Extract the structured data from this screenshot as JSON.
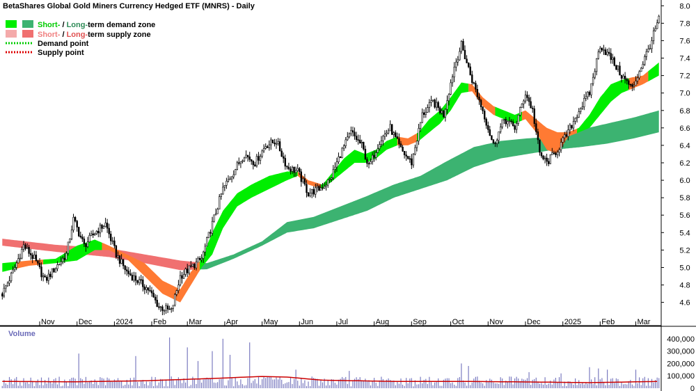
{
  "chart_data": {
    "type": "candlestick",
    "title": "BetaShares Global Gold Miners Currency Hedged ETF (MNRS) - Daily",
    "legend": {
      "placement": "top-left",
      "demand_zone": {
        "short": "Short-",
        "sep": " / ",
        "long": "Long-",
        "rest": "term demand zone",
        "short_color": "#00ee00",
        "long_color": "#3cb371"
      },
      "supply_zone": {
        "short": "Short-",
        "sep": " / ",
        "long": "Long-",
        "rest": "term supply zone",
        "short_color": "#f4aaaa",
        "long_color": "#f07070"
      },
      "demand_point": {
        "label": "Demand point",
        "color": "#00cc00"
      },
      "supply_point": {
        "label": "Supply point",
        "color": "#dd0000"
      }
    },
    "x_labels": [
      "Nov",
      "Dec",
      "2024",
      "Feb",
      "Mar",
      "Apr",
      "May",
      "Jun",
      "Jul",
      "Aug",
      "Sep",
      "Oct",
      "Nov",
      "Dec",
      "2025",
      "Feb",
      "Mar"
    ],
    "x_label_index": [
      21,
      42,
      63,
      84,
      104,
      125,
      146,
      167,
      188,
      209,
      230,
      252,
      273,
      294,
      315,
      336,
      356
    ],
    "total_bars": 370,
    "price_axis": {
      "ylim": [
        4.35,
        8.05
      ],
      "ticks": [
        "4.6",
        "4.8",
        "5.0",
        "5.2",
        "5.4",
        "5.6",
        "5.8",
        "6.0",
        "6.2",
        "6.4",
        "6.6",
        "6.8",
        "7.0",
        "7.2",
        "7.4",
        "7.6",
        "7.8",
        "8.0"
      ]
    },
    "price_path": [
      [
        0,
        4.7
      ],
      [
        6,
        4.95
      ],
      [
        12,
        5.25
      ],
      [
        18,
        5.1
      ],
      [
        24,
        4.85
      ],
      [
        30,
        5.0
      ],
      [
        36,
        5.15
      ],
      [
        40,
        5.55
      ],
      [
        46,
        5.25
      ],
      [
        52,
        5.4
      ],
      [
        58,
        5.5
      ],
      [
        64,
        5.15
      ],
      [
        70,
        4.95
      ],
      [
        76,
        4.85
      ],
      [
        82,
        4.75
      ],
      [
        88,
        4.55
      ],
      [
        95,
        4.5
      ],
      [
        100,
        4.9
      ],
      [
        106,
        5.0
      ],
      [
        112,
        5.1
      ],
      [
        118,
        5.5
      ],
      [
        124,
        5.9
      ],
      [
        130,
        6.1
      ],
      [
        136,
        6.3
      ],
      [
        142,
        6.2
      ],
      [
        148,
        6.4
      ],
      [
        154,
        6.45
      ],
      [
        160,
        6.15
      ],
      [
        166,
        6.1
      ],
      [
        172,
        5.85
      ],
      [
        178,
        5.9
      ],
      [
        184,
        6.0
      ],
      [
        190,
        6.3
      ],
      [
        196,
        6.55
      ],
      [
        202,
        6.4
      ],
      [
        206,
        6.15
      ],
      [
        212,
        6.45
      ],
      [
        218,
        6.6
      ],
      [
        224,
        6.35
      ],
      [
        230,
        6.2
      ],
      [
        236,
        6.75
      ],
      [
        242,
        6.9
      ],
      [
        248,
        6.75
      ],
      [
        254,
        7.3
      ],
      [
        258,
        7.55
      ],
      [
        264,
        7.15
      ],
      [
        270,
        6.8
      ],
      [
        276,
        6.4
      ],
      [
        282,
        6.7
      ],
      [
        288,
        6.6
      ],
      [
        294,
        7.0
      ],
      [
        298,
        6.8
      ],
      [
        302,
        6.3
      ],
      [
        306,
        6.2
      ],
      [
        312,
        6.35
      ],
      [
        318,
        6.55
      ],
      [
        324,
        6.8
      ],
      [
        330,
        7.0
      ],
      [
        336,
        7.55
      ],
      [
        342,
        7.4
      ],
      [
        348,
        7.2
      ],
      [
        354,
        7.05
      ],
      [
        360,
        7.35
      ],
      [
        364,
        7.55
      ],
      [
        369,
        7.85
      ]
    ],
    "long_zone": [
      [
        0,
        5.33,
        5.25
      ],
      [
        30,
        5.26,
        5.18
      ],
      [
        60,
        5.22,
        5.12
      ],
      [
        80,
        5.15,
        5.05
      ],
      [
        100,
        5.08,
        4.97
      ],
      [
        115,
        5.05,
        4.98
      ],
      [
        130,
        5.15,
        5.1
      ],
      [
        146,
        5.3,
        5.25
      ],
      [
        160,
        5.52,
        5.4
      ],
      [
        175,
        5.58,
        5.45
      ],
      [
        190,
        5.7,
        5.55
      ],
      [
        205,
        5.82,
        5.65
      ],
      [
        220,
        5.95,
        5.8
      ],
      [
        235,
        6.05,
        5.9
      ],
      [
        250,
        6.22,
        6.0
      ],
      [
        265,
        6.38,
        6.15
      ],
      [
        280,
        6.45,
        6.25
      ],
      [
        295,
        6.48,
        6.3
      ],
      [
        310,
        6.5,
        6.35
      ],
      [
        325,
        6.58,
        6.38
      ],
      [
        340,
        6.65,
        6.42
      ],
      [
        355,
        6.72,
        6.48
      ],
      [
        369,
        6.8,
        6.55
      ]
    ],
    "long_supply_until": 110,
    "short_zone": [
      [
        0,
        5.05,
        4.95
      ],
      [
        15,
        5.08,
        5.02
      ],
      [
        30,
        5.1,
        5.05
      ],
      [
        42,
        5.25,
        5.08
      ],
      [
        52,
        5.32,
        5.2
      ],
      [
        60,
        5.25,
        5.2
      ],
      [
        70,
        5.15,
        5.1
      ],
      [
        80,
        5.05,
        4.9
      ],
      [
        90,
        4.85,
        4.7
      ],
      [
        100,
        4.75,
        4.6
      ],
      [
        106,
        4.95,
        4.8
      ],
      [
        112,
        5.1,
        5.0
      ],
      [
        118,
        5.4,
        5.15
      ],
      [
        124,
        5.65,
        5.45
      ],
      [
        132,
        5.85,
        5.7
      ],
      [
        140,
        5.95,
        5.8
      ],
      [
        150,
        6.05,
        5.9
      ],
      [
        160,
        6.1,
        6.0
      ],
      [
        166,
        6.1,
        6.05
      ],
      [
        172,
        6.0,
        5.95
      ],
      [
        180,
        5.95,
        5.9
      ],
      [
        186,
        6.1,
        6.0
      ],
      [
        192,
        6.25,
        6.1
      ],
      [
        198,
        6.35,
        6.2
      ],
      [
        204,
        6.3,
        6.2
      ],
      [
        210,
        6.35,
        6.25
      ],
      [
        216,
        6.45,
        6.35
      ],
      [
        222,
        6.5,
        6.4
      ],
      [
        228,
        6.48,
        6.4
      ],
      [
        234,
        6.55,
        6.45
      ],
      [
        240,
        6.7,
        6.55
      ],
      [
        246,
        6.8,
        6.65
      ],
      [
        252,
        6.95,
        6.8
      ],
      [
        258,
        7.12,
        7.0
      ],
      [
        264,
        7.1,
        7.02
      ],
      [
        270,
        6.95,
        6.85
      ],
      [
        276,
        6.85,
        6.75
      ],
      [
        282,
        6.8,
        6.7
      ],
      [
        288,
        6.75,
        6.65
      ],
      [
        294,
        6.8,
        6.7
      ],
      [
        300,
        6.7,
        6.55
      ],
      [
        306,
        6.6,
        6.35
      ],
      [
        312,
        6.55,
        6.3
      ],
      [
        318,
        6.55,
        6.5
      ],
      [
        324,
        6.6,
        6.55
      ],
      [
        330,
        6.75,
        6.6
      ],
      [
        336,
        6.95,
        6.75
      ],
      [
        342,
        7.1,
        6.9
      ],
      [
        348,
        7.15,
        7.0
      ],
      [
        354,
        7.18,
        7.05
      ],
      [
        360,
        7.2,
        7.1
      ],
      [
        369,
        7.35,
        7.2
      ]
    ],
    "short_supply_ranges": [
      [
        8,
        22
      ],
      [
        56,
        110
      ],
      [
        166,
        178
      ],
      [
        222,
        232
      ],
      [
        262,
        276
      ],
      [
        292,
        322
      ],
      [
        352,
        362
      ]
    ],
    "volume_axis": {
      "ylim": [
        0,
        450000
      ],
      "ticks": [
        "0",
        "100,000",
        "200,000",
        "300,000",
        "400,000"
      ],
      "title": "Volume"
    },
    "volume_spikes": [
      [
        43,
        280000
      ],
      [
        75,
        260000
      ],
      [
        94,
        410000
      ],
      [
        104,
        330000
      ],
      [
        110,
        220000
      ],
      [
        118,
        300000
      ],
      [
        124,
        400000
      ],
      [
        128,
        270000
      ],
      [
        139,
        370000
      ],
      [
        165,
        150000
      ],
      [
        195,
        140000
      ],
      [
        258,
        200000
      ],
      [
        262,
        180000
      ],
      [
        296,
        130000
      ],
      [
        314,
        120000
      ],
      [
        330,
        170000
      ],
      [
        335,
        160000
      ],
      [
        340,
        150000
      ],
      [
        356,
        150000
      ]
    ],
    "volume_baseline": 50000,
    "volume_ma": [
      [
        0,
        55000
      ],
      [
        40,
        52000
      ],
      [
        80,
        60000
      ],
      [
        120,
        80000
      ],
      [
        146,
        95000
      ],
      [
        160,
        90000
      ],
      [
        180,
        65000
      ],
      [
        220,
        55000
      ],
      [
        260,
        55000
      ],
      [
        300,
        50000
      ],
      [
        330,
        45000
      ],
      [
        369,
        55000
      ]
    ],
    "colors": {
      "candle": "#000000",
      "volume_bar": "#7b7bc0",
      "volume_ma": "#cc0000"
    }
  }
}
